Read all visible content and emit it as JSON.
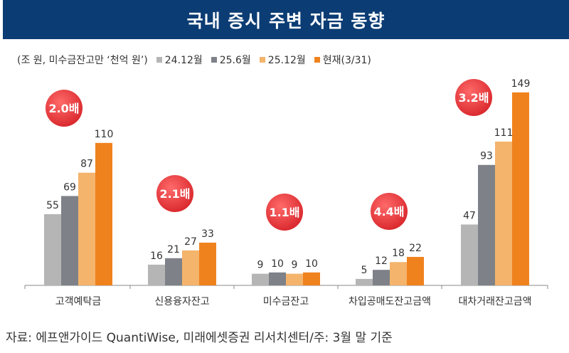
{
  "title": "국내 증시 주변 자금 동향",
  "unit_note": "(조 원, 미수금잔고만 ‘천억 원’)",
  "source": "자료: 에프앤가이드 QuantiWise, 미래에셋증권 리서치센터/주: 3월 말 기준",
  "chart_data": {
    "type": "bar",
    "categories": [
      "고객예탁금",
      "신용융자잔고",
      "미수금잔고",
      "차입공매도잔고금액",
      "대차거래잔고금액"
    ],
    "series": [
      {
        "name": "24.12월",
        "color": "#b5b5b5",
        "values": [
          55,
          16,
          9,
          5,
          47
        ]
      },
      {
        "name": "25.6월",
        "color": "#7e8288",
        "values": [
          69,
          21,
          10,
          12,
          93
        ]
      },
      {
        "name": "25.12월",
        "color": "#f4b46c",
        "values": [
          87,
          27,
          9,
          18,
          111
        ]
      },
      {
        "name": "현재(3/31)",
        "color": "#f0821e",
        "values": [
          110,
          33,
          10,
          22,
          149
        ]
      }
    ],
    "annotations": [
      "2.0배",
      "2.1배",
      "1.1배",
      "4.4배",
      "3.2배"
    ],
    "annotation_color": "#e23a3c",
    "ylim": [
      0,
      150
    ],
    "legend": "top-left",
    "grid": false
  }
}
